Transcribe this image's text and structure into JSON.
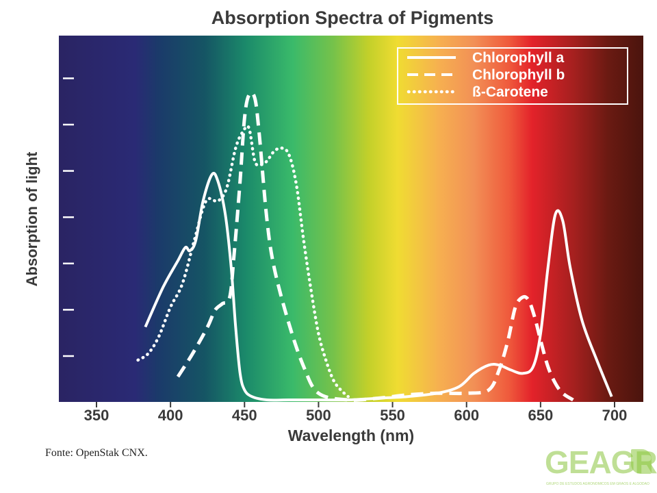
{
  "chart_data": {
    "type": "line",
    "title": "Absorption Spectra of Pigments",
    "xlabel": "Wavelength (nm)",
    "ylabel": "Absorption of light",
    "xlim": [
      325,
      725
    ],
    "ylim": [
      0,
      100
    ],
    "xticks": [
      350,
      400,
      450,
      500,
      550,
      600,
      650,
      700
    ],
    "y_tick_count": 7,
    "y_tick_labels_shown": false,
    "legend_position": "top-right",
    "background": "visible light spectrum gradient (violet to red)",
    "series": [
      {
        "name": "Chlorophyll a",
        "style": "solid",
        "color": "#ffffff",
        "x": [
          383,
          395,
          405,
          410,
          413,
          417,
          422,
          428,
          432,
          437,
          441,
          444,
          447,
          450,
          455,
          465,
          480,
          500,
          520,
          540,
          560,
          580,
          595,
          605,
          615,
          622,
          630,
          638,
          645,
          650,
          655,
          660,
          665,
          670,
          678,
          688,
          698
        ],
        "y": [
          22,
          34,
          42,
          46,
          45,
          48,
          60,
          68,
          66,
          56,
          40,
          22,
          8,
          3,
          1,
          0,
          0,
          0,
          0,
          0.5,
          1,
          2,
          4,
          8,
          10.5,
          10.5,
          9,
          8,
          10,
          20,
          40,
          56,
          54,
          40,
          24,
          12,
          1
        ]
      },
      {
        "name": "Chlorophyll b",
        "style": "dashed",
        "color": "#ffffff",
        "x": [
          405,
          415,
          425,
          430,
          435,
          440,
          443,
          447,
          450,
          453,
          457,
          460,
          465,
          470,
          480,
          490,
          500,
          520,
          540,
          560,
          580,
          600,
          615,
          622,
          628,
          633,
          638,
          642,
          646,
          650,
          655,
          660,
          665,
          672
        ],
        "y": [
          7,
          14,
          22,
          27,
          29,
          31,
          44,
          66,
          85,
          92,
          91,
          80,
          55,
          40,
          23,
          10,
          2,
          0,
          0.5,
          1.5,
          2,
          2,
          3,
          9,
          18,
          28,
          31,
          30,
          25,
          18,
          10,
          5,
          2,
          0
        ]
      },
      {
        "name": "ß-Carotene",
        "style": "dotted",
        "color": "#ffffff",
        "x": [
          378,
          385,
          392,
          400,
          408,
          416,
          424,
          432,
          438,
          444,
          449,
          453,
          457,
          461,
          465,
          470,
          475,
          480,
          485,
          490,
          495,
          500,
          505,
          510,
          515,
          520
        ],
        "y": [
          12,
          14,
          19,
          28,
          35,
          48,
          60,
          60,
          64,
          76,
          81,
          82,
          72,
          71,
          72,
          75,
          76,
          74,
          65,
          48,
          33,
          20,
          12,
          6,
          3,
          1
        ]
      }
    ]
  },
  "source_note": "Fonte: OpenStak CNX.",
  "logo": {
    "text": "GEAGRA",
    "subtitle": "GRUPO DE ESTUDOS AGRONÔMICOS EM GRÃOS E ALGODÃO",
    "color": "#8cc63f"
  }
}
